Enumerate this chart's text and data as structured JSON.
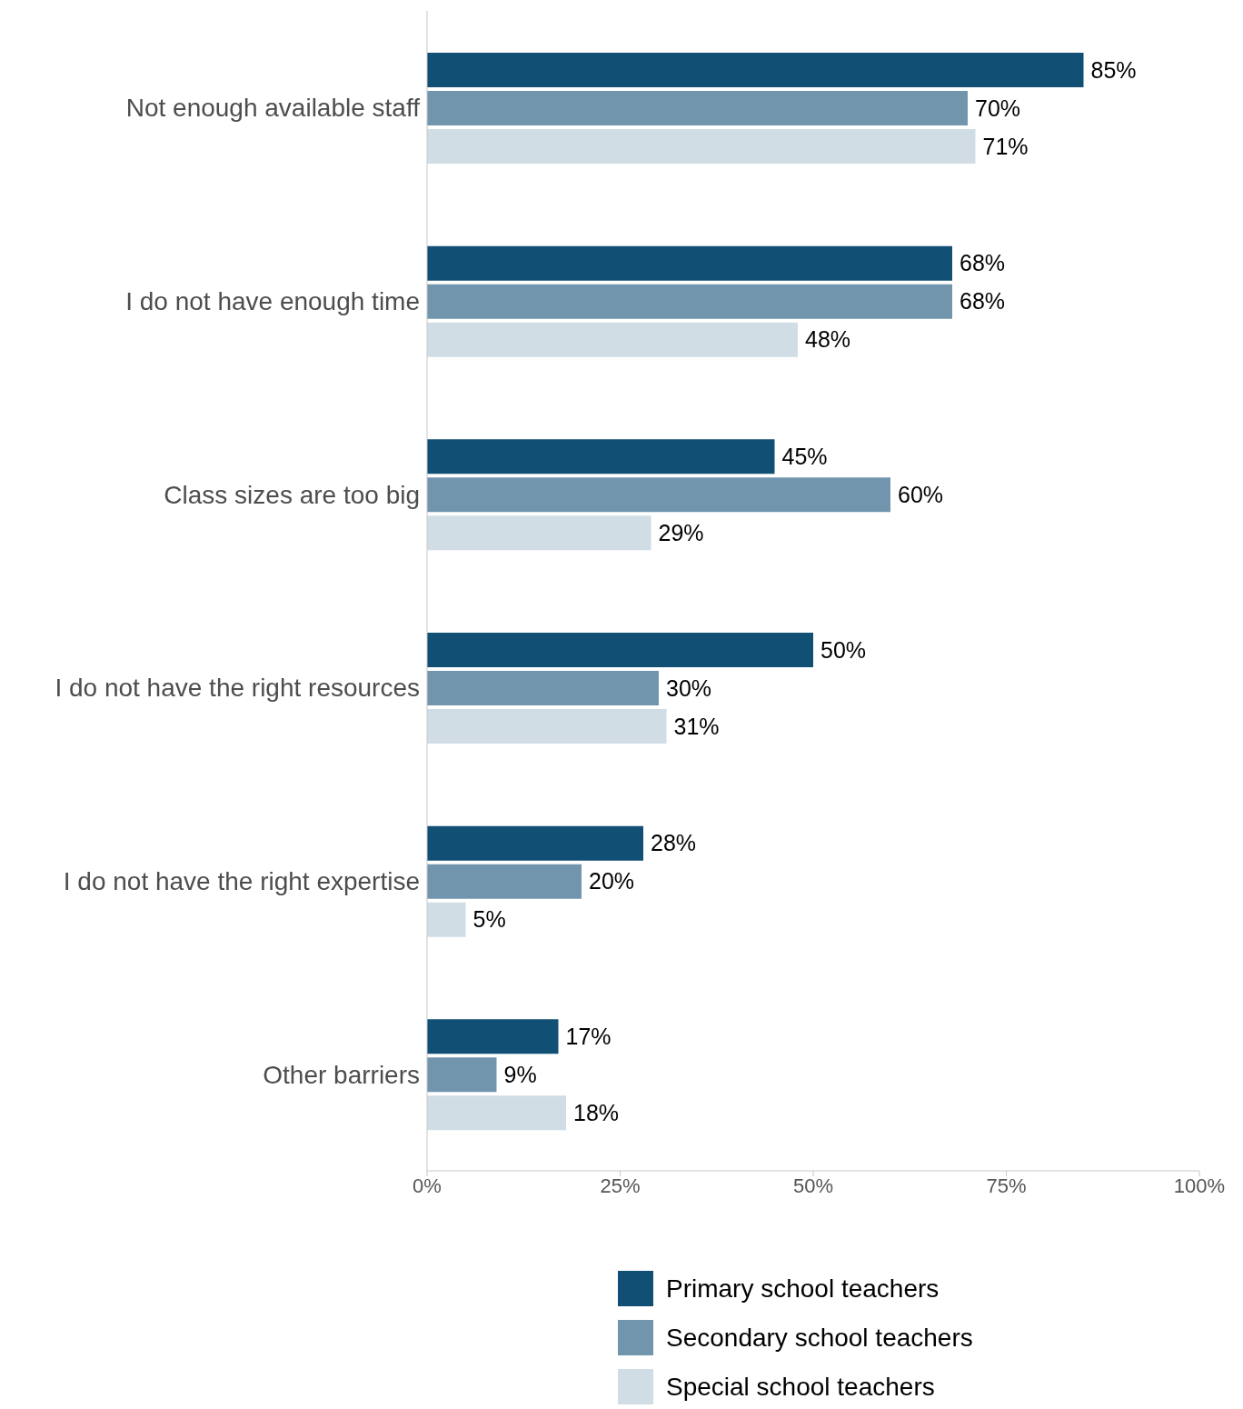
{
  "chart_data": {
    "type": "bar",
    "orientation": "horizontal",
    "categories": [
      "Not enough available staff",
      "I do not have enough time",
      "Class sizes are too big",
      "I do not have the right resources",
      "I do not have the right expertise",
      "Other barriers"
    ],
    "series": [
      {
        "name": "Primary school teachers",
        "color": "#114f74",
        "values": [
          85,
          68,
          45,
          50,
          28,
          17
        ],
        "value_labels": [
          "85%",
          "68%",
          "45%",
          "50%",
          "28%",
          "17%"
        ]
      },
      {
        "name": "Secondary school teachers",
        "color": "#7295ae",
        "values": [
          70,
          68,
          60,
          30,
          20,
          9
        ],
        "value_labels": [
          "70%",
          "68%",
          "60%",
          "30%",
          "20%",
          "9%"
        ]
      },
      {
        "name": "Special school teachers",
        "color": "#d1dde5",
        "values": [
          71,
          48,
          29,
          31,
          5,
          18
        ],
        "value_labels": [
          "71%",
          "48%",
          "29%",
          "31%",
          "5%",
          "18%"
        ]
      }
    ],
    "xlim": [
      0,
      100
    ],
    "xticks": [
      {
        "value": 0,
        "label": "0%"
      },
      {
        "value": 25,
        "label": "25%"
      },
      {
        "value": 50,
        "label": "50%"
      },
      {
        "value": 75,
        "label": "75%"
      },
      {
        "value": 100,
        "label": "100%"
      }
    ],
    "grid": false,
    "legend": "bottom"
  }
}
